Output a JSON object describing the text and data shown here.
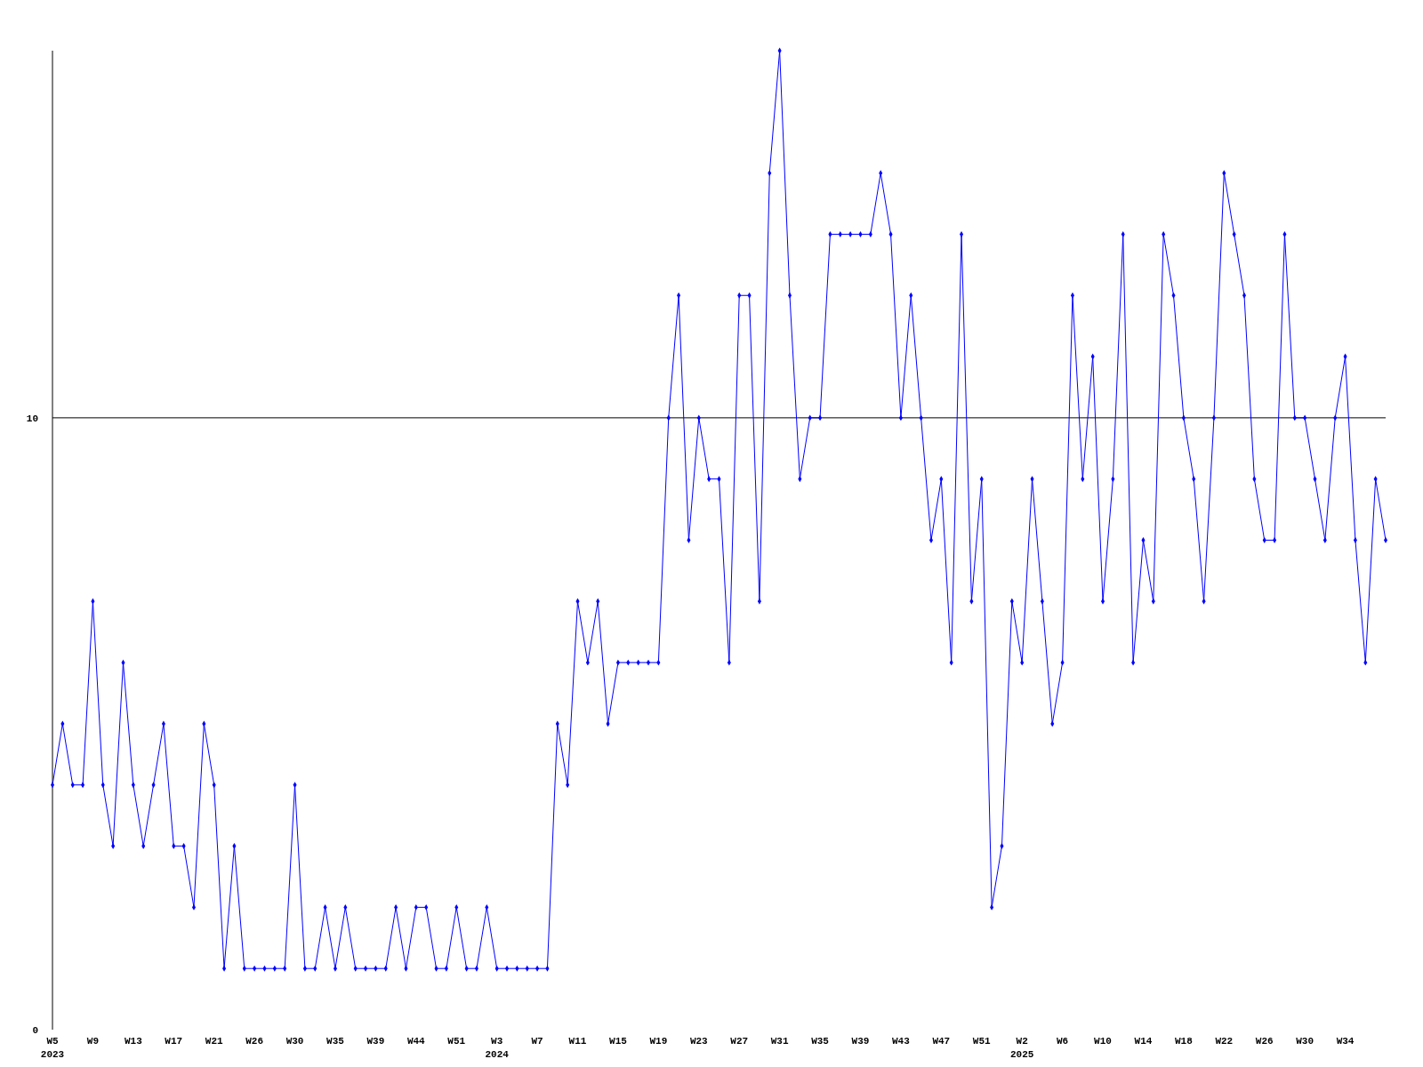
{
  "chart_data": {
    "type": "line",
    "categories": [
      "W5\n2023",
      null,
      null,
      null,
      "W9",
      null,
      null,
      null,
      "W13",
      null,
      null,
      null,
      "W17",
      null,
      null,
      null,
      "W21",
      null,
      null,
      null,
      "W26",
      null,
      null,
      null,
      "W30",
      null,
      null,
      null,
      "W35",
      null,
      null,
      null,
      "W39",
      null,
      null,
      null,
      "W44",
      null,
      null,
      null,
      "W51",
      null,
      null,
      null,
      "W3\n2024",
      null,
      null,
      null,
      "W7",
      null,
      null,
      null,
      "W11",
      null,
      null,
      null,
      "W15",
      null,
      null,
      null,
      "W19",
      null,
      null,
      null,
      "W23",
      null,
      null,
      null,
      "W27",
      null,
      null,
      null,
      "W31",
      null,
      null,
      null,
      "W35",
      null,
      null,
      null,
      "W39",
      null,
      null,
      null,
      "W43",
      null,
      null,
      null,
      "W47",
      null,
      null,
      null,
      "W51",
      null,
      null,
      null,
      "W2\n2025",
      null,
      null,
      null,
      "W6",
      null,
      null,
      null,
      "W10",
      null,
      null,
      null,
      "W14",
      null,
      null,
      null,
      "W18",
      null,
      null,
      null,
      "W22",
      null,
      null,
      null,
      "W26",
      null,
      null,
      null,
      "W30",
      null,
      null,
      null,
      "W34",
      null,
      null,
      null,
      null
    ],
    "series": [
      {
        "color": "#0000ff",
        "values": [
          4,
          5,
          4,
          4,
          7,
          4,
          3,
          6,
          4,
          3,
          4,
          5,
          3,
          3,
          2,
          5,
          4,
          1,
          3,
          1,
          1,
          1,
          1,
          1,
          4,
          1,
          1,
          2,
          1,
          2,
          1,
          1,
          1,
          1,
          2,
          1,
          2,
          2,
          1,
          1,
          2,
          1,
          1,
          2,
          1,
          1,
          1,
          1,
          1,
          1,
          5,
          4,
          7,
          6,
          7,
          5,
          6,
          6,
          6,
          6,
          6,
          10,
          12,
          8,
          10,
          9,
          9,
          6,
          12,
          12,
          7,
          14,
          16,
          12,
          9,
          10,
          10,
          13,
          13,
          13,
          13,
          13,
          14,
          13,
          10,
          12,
          10,
          8,
          9,
          6,
          13,
          7,
          9,
          2,
          3,
          7,
          6,
          9,
          7,
          5,
          6,
          12,
          9,
          11,
          7,
          9,
          13,
          6,
          8,
          7,
          13,
          12,
          10,
          9,
          7,
          10,
          14,
          13,
          12,
          9,
          8,
          8,
          13,
          10,
          10,
          9,
          8,
          10,
          11,
          8,
          6,
          9,
          8
        ]
      }
    ],
    "ylim": [
      0,
      16
    ],
    "yticks": [
      0,
      10
    ],
    "grid": "y",
    "marker": "diamond",
    "line_style": "solid"
  }
}
